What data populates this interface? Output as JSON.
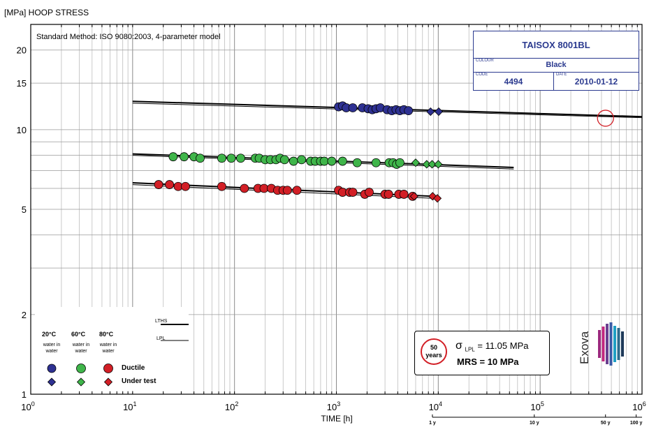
{
  "chart_data": {
    "type": "scatter",
    "y_axis_title": "[MPa] HOOP STRESS",
    "x_axis_title": "TIME [h]",
    "method_note": "Standard Method: ISO 9080:2003, 4-parameter model",
    "x_scale": "log",
    "y_scale": "log",
    "xlim": [
      1,
      1000000
    ],
    "ylim": [
      1,
      25
    ],
    "grid": true,
    "y_ticks": [
      {
        "value": 1,
        "label": "1"
      },
      {
        "value": 2,
        "label": "2"
      },
      {
        "value": 5,
        "label": "5"
      },
      {
        "value": 10,
        "label": "10"
      },
      {
        "value": 15,
        "label": "15"
      },
      {
        "value": 20,
        "label": "20"
      }
    ],
    "x_ticks": [
      {
        "value": 1,
        "base": "10",
        "exp": "0"
      },
      {
        "value": 10,
        "base": "10",
        "exp": "1"
      },
      {
        "value": 100,
        "base": "10",
        "exp": "2"
      },
      {
        "value": 1000,
        "base": "10",
        "exp": "3"
      },
      {
        "value": 10000,
        "base": "10",
        "exp": "4"
      },
      {
        "value": 100000,
        "base": "10",
        "exp": "5"
      },
      {
        "value": 1000000,
        "base": "10",
        "exp": "6"
      }
    ],
    "year_ticks": [
      {
        "value": 8760,
        "label": "1 y"
      },
      {
        "value": 87600,
        "label": "10 y"
      },
      {
        "value": 438000,
        "label": "50  y"
      },
      {
        "value": 876000,
        "label": "100  y"
      }
    ],
    "series": [
      {
        "name": "20°C",
        "color": "#2e3192",
        "ductile": [
          [
            1050,
            12.2
          ],
          [
            1150,
            12.3
          ],
          [
            1250,
            12.1
          ],
          [
            1450,
            12.1
          ],
          [
            1800,
            12.1
          ],
          [
            2050,
            12.0
          ],
          [
            2250,
            11.9
          ],
          [
            2450,
            12.0
          ],
          [
            2700,
            12.1
          ],
          [
            3150,
            11.9
          ],
          [
            3500,
            11.8
          ],
          [
            3850,
            11.9
          ],
          [
            4200,
            11.8
          ],
          [
            4600,
            11.9
          ],
          [
            5100,
            11.8
          ]
        ],
        "under_test": [
          [
            8400,
            11.7
          ],
          [
            10100,
            11.7
          ]
        ],
        "lths": [
          [
            10,
            12.8
          ],
          [
            1000000,
            11.2
          ]
        ],
        "lpl": [
          [
            10,
            12.6
          ],
          [
            1000000,
            11.1
          ]
        ]
      },
      {
        "name": "60°C",
        "color": "#3fb54a",
        "ductile": [
          [
            25,
            7.9
          ],
          [
            32,
            7.9
          ],
          [
            40,
            7.9
          ],
          [
            46,
            7.8
          ],
          [
            75,
            7.8
          ],
          [
            93,
            7.8
          ],
          [
            115,
            7.8
          ],
          [
            160,
            7.8
          ],
          [
            175,
            7.8
          ],
          [
            200,
            7.7
          ],
          [
            225,
            7.7
          ],
          [
            255,
            7.7
          ],
          [
            280,
            7.8
          ],
          [
            310,
            7.7
          ],
          [
            380,
            7.6
          ],
          [
            455,
            7.7
          ],
          [
            560,
            7.6
          ],
          [
            620,
            7.6
          ],
          [
            700,
            7.6
          ],
          [
            760,
            7.6
          ],
          [
            900,
            7.6
          ],
          [
            1150,
            7.6
          ],
          [
            1600,
            7.5
          ],
          [
            2450,
            7.5
          ],
          [
            3300,
            7.5
          ],
          [
            3600,
            7.5
          ],
          [
            3900,
            7.4
          ],
          [
            4200,
            7.5
          ]
        ],
        "under_test": [
          [
            6000,
            7.5
          ],
          [
            7700,
            7.4
          ],
          [
            8700,
            7.4
          ],
          [
            10000,
            7.4
          ]
        ],
        "lths": [
          [
            10,
            8.1
          ],
          [
            55000,
            7.2
          ]
        ],
        "lpl": [
          [
            10,
            8.0
          ],
          [
            55000,
            7.1
          ]
        ]
      },
      {
        "name": "80°C",
        "color": "#d21f26",
        "ductile": [
          [
            18,
            6.2
          ],
          [
            23,
            6.2
          ],
          [
            28,
            6.1
          ],
          [
            33,
            6.1
          ],
          [
            75,
            6.1
          ],
          [
            125,
            6.0
          ],
          [
            170,
            6.0
          ],
          [
            195,
            6.0
          ],
          [
            230,
            6.0
          ],
          [
            265,
            5.9
          ],
          [
            300,
            5.9
          ],
          [
            330,
            5.9
          ],
          [
            410,
            5.9
          ],
          [
            1050,
            5.9
          ],
          [
            1150,
            5.8
          ],
          [
            1350,
            5.8
          ],
          [
            1450,
            5.8
          ],
          [
            1900,
            5.7
          ],
          [
            2100,
            5.8
          ],
          [
            3000,
            5.7
          ],
          [
            3250,
            5.7
          ],
          [
            4100,
            5.7
          ],
          [
            4600,
            5.7
          ],
          [
            5600,
            5.6
          ]
        ],
        "under_test": [
          [
            5800,
            5.6
          ],
          [
            8800,
            5.6
          ],
          [
            9800,
            5.5
          ]
        ],
        "lths": [
          [
            10,
            6.3
          ],
          [
            9000,
            5.6
          ]
        ],
        "lpl": [
          [
            10,
            6.2
          ],
          [
            9000,
            5.5
          ]
        ]
      }
    ],
    "mrs_marker": {
      "x": 438000,
      "y": 11.05
    }
  },
  "info_box": {
    "title": "TAISOX 8001BL",
    "colour_label": "COLOUR",
    "colour_value": "Black",
    "code_label": "CODE",
    "code_value": "4494",
    "date_label": "DATE",
    "date_value": "2010-01-12"
  },
  "mrs_box": {
    "years_number": "50",
    "years_label": "years",
    "sigma_symbol": "σ",
    "sigma_sub": "LPL",
    "sigma_value": "= 11.05 MPa",
    "mrs_text": "MRS =  10 MPa"
  },
  "legend": {
    "lths_label": "LTHS",
    "lpl_label": "LPL",
    "temps": [
      {
        "temp": "20°C",
        "medium": "water in water"
      },
      {
        "temp": "60°C",
        "medium": "water in water"
      },
      {
        "temp": "80°C",
        "medium": "water in water"
      }
    ],
    "ductile_label": "Ductile",
    "under_test_label": "Under test"
  },
  "logo": {
    "text": "Exova",
    "bar_colors": [
      "#9c2a7f",
      "#c2287f",
      "#6a3f8f",
      "#3a5aa5",
      "#1f9fc4",
      "#2c6b8c",
      "#1e3a5a"
    ]
  }
}
